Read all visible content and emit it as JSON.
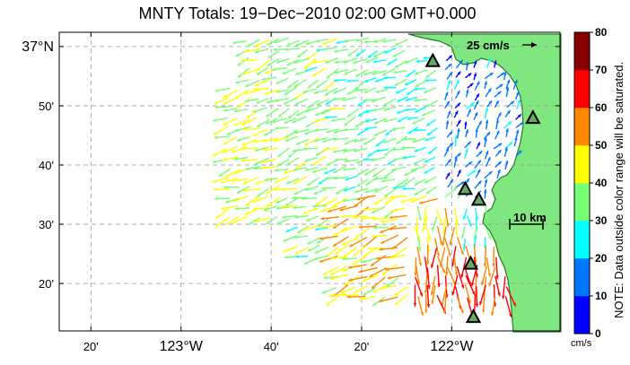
{
  "title": "MNTY Totals: 19−Dec−2010 02:00 GMT+0.000",
  "note": "NOTE: Data outside color range will be saturated.",
  "scale_label": "25 cm/s",
  "distance_label": "10 km",
  "colorbar": {
    "unit": "cm/s",
    "ticks": [
      "0",
      "10",
      "20",
      "30",
      "40",
      "50",
      "60",
      "70",
      "80"
    ],
    "colors": [
      "#0000ff",
      "#0077ff",
      "#00ffff",
      "#77ff77",
      "#ffff00",
      "#ff8800",
      "#ff0000",
      "#880000"
    ]
  },
  "axes": {
    "x_ticks": [
      {
        "lon": -123.333,
        "label": "20'"
      },
      {
        "lon": -123.0,
        "label": "123°W"
      },
      {
        "lon": -122.667,
        "label": "40'"
      },
      {
        "lon": -122.333,
        "label": "20'"
      },
      {
        "lon": -122.0,
        "label": "122°W"
      }
    ],
    "y_ticks": [
      {
        "lat": 37.0,
        "label": "37°N"
      },
      {
        "lat": 36.8333,
        "label": "50'"
      },
      {
        "lat": 36.6667,
        "label": "40'"
      },
      {
        "lat": 36.5,
        "label": "30'"
      },
      {
        "lat": 36.3333,
        "label": "20'"
      }
    ],
    "lon_range": [
      -123.45,
      -121.6
    ],
    "lat_range": [
      36.2,
      37.04
    ]
  },
  "sites": [
    {
      "lon": -122.07,
      "lat": 36.96
    },
    {
      "lon": -121.7,
      "lat": 36.8
    },
    {
      "lon": -121.95,
      "lat": 36.6
    },
    {
      "lon": -121.9,
      "lat": 36.57
    },
    {
      "lon": -121.93,
      "lat": 36.39
    },
    {
      "lon": -121.92,
      "lat": 36.24
    }
  ],
  "colors": {
    "land": "#80e680",
    "coast": "#2a7a2a",
    "grid": "#999999",
    "site_fill": "#66aa66"
  }
}
